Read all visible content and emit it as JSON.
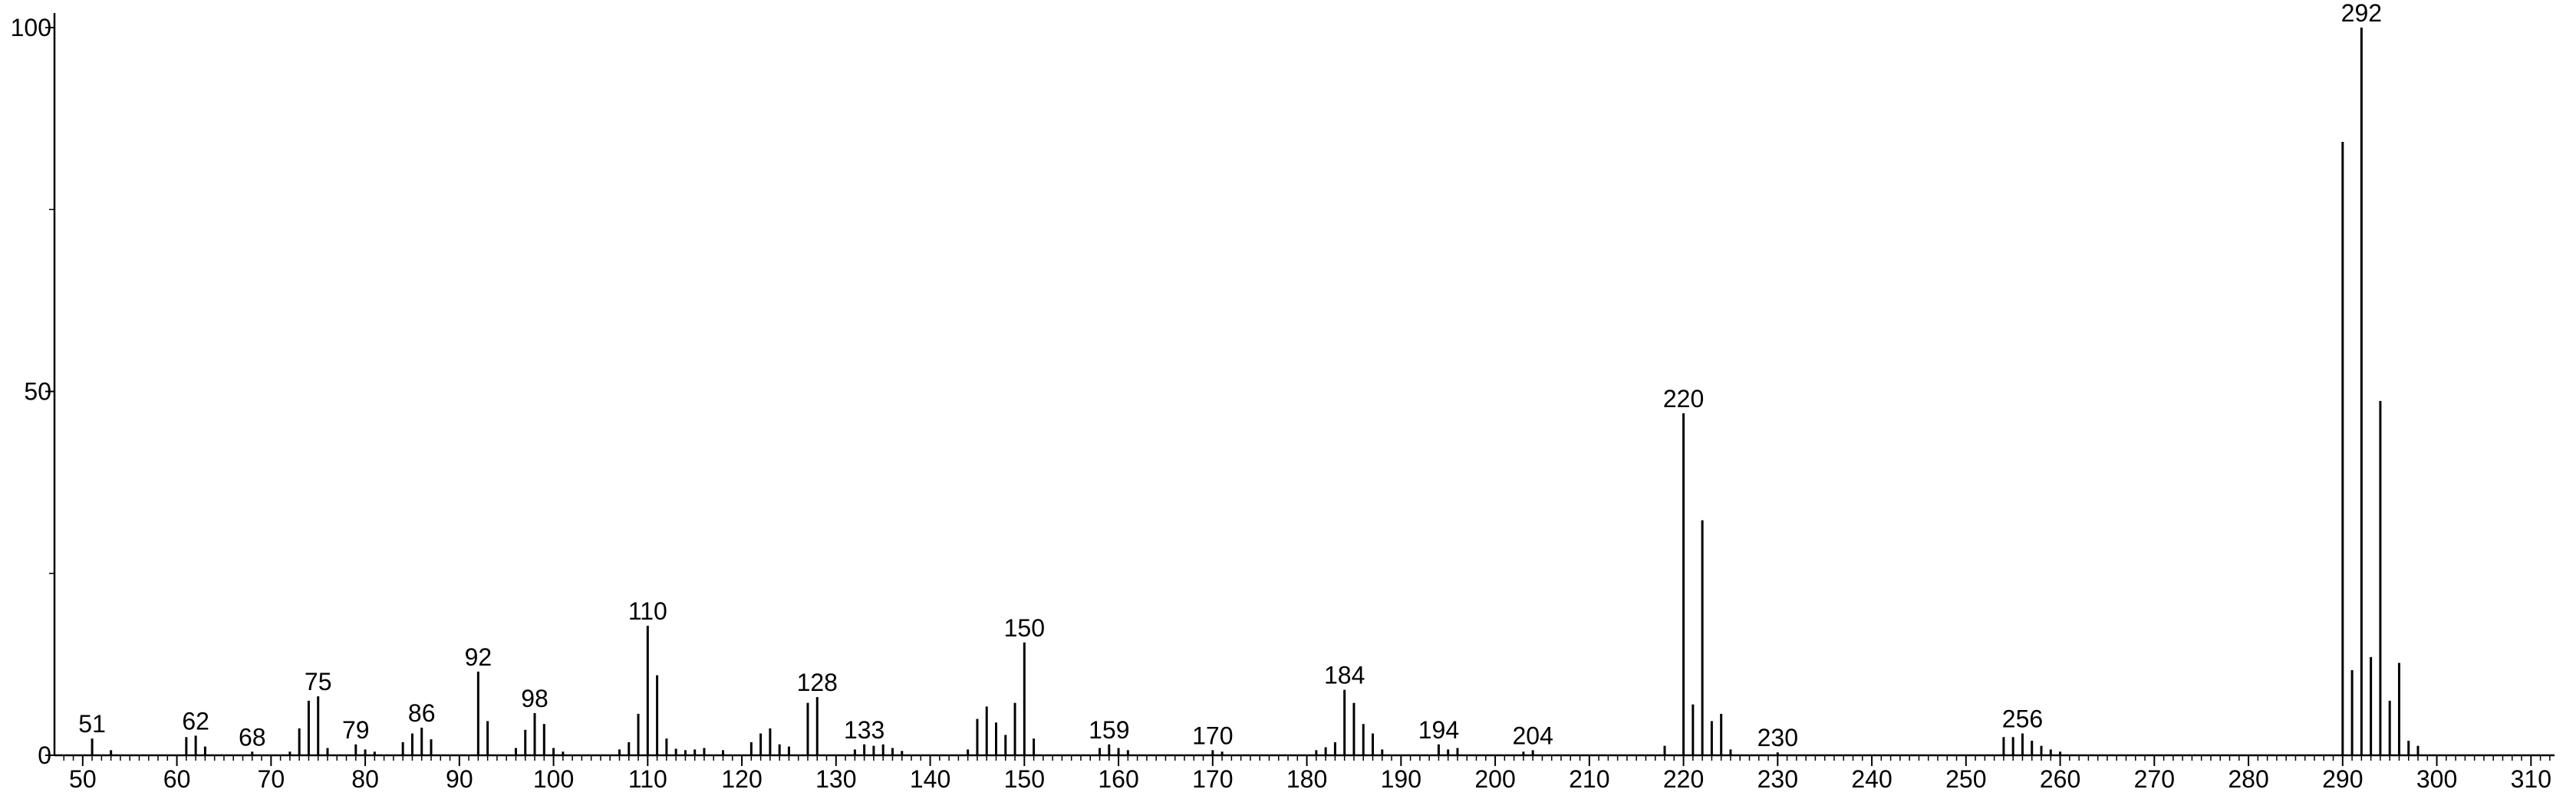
{
  "chart_data": {
    "type": "stick",
    "color": "#000000",
    "x": [
      51,
      53,
      61,
      62,
      63,
      68,
      72,
      73,
      74,
      75,
      76,
      79,
      80,
      81,
      84,
      85,
      86,
      87,
      92,
      93,
      96,
      97,
      98,
      99,
      100,
      101,
      107,
      108,
      109,
      110,
      111,
      112,
      113,
      114,
      115,
      116,
      118,
      121,
      122,
      123,
      124,
      125,
      127,
      128,
      132,
      133,
      134,
      135,
      136,
      137,
      144,
      145,
      146,
      147,
      148,
      149,
      150,
      151,
      158,
      159,
      160,
      161,
      170,
      171,
      181,
      182,
      183,
      184,
      185,
      186,
      187,
      188,
      194,
      195,
      196,
      203,
      204,
      218,
      220,
      221,
      222,
      223,
      224,
      225,
      230,
      254,
      255,
      256,
      257,
      258,
      259,
      260,
      290,
      291,
      292,
      293,
      294,
      295,
      296,
      297,
      298
    ],
    "values": [
      2.3,
      0.7,
      2.5,
      2.7,
      1.2,
      0.5,
      0.5,
      3.7,
      7.5,
      8.1,
      1,
      1.5,
      0.8,
      0.5,
      1.8,
      3,
      3.8,
      2.2,
      11.5,
      4.7,
      1,
      3.5,
      5.8,
      4.3,
      1,
      0.5,
      0.8,
      1.8,
      5.7,
      17.8,
      11,
      2.3,
      0.9,
      0.7,
      0.8,
      1,
      0.7,
      1.8,
      3,
      3.7,
      1.5,
      1.2,
      7.2,
      8,
      0.8,
      1.5,
      1.3,
      1.5,
      1,
      0.6,
      0.8,
      5,
      6.7,
      4.5,
      2.8,
      7.2,
      15.5,
      2.3,
      1,
      1.5,
      1,
      0.7,
      0.7,
      0.5,
      0.7,
      1.1,
      1.8,
      9,
      7.2,
      4.3,
      3,
      0.8,
      1.5,
      0.8,
      1,
      0.5,
      0.7,
      1.3,
      47,
      7,
      32.3,
      4.7,
      5.7,
      0.8,
      0.4,
      2.5,
      2.5,
      3,
      2,
      1.3,
      0.8,
      0.5,
      84.3,
      11.7,
      100,
      13.5,
      48.7,
      7.5,
      12.7,
      2,
      1.3
    ],
    "peak_labels": [
      51,
      62,
      68,
      75,
      79,
      86,
      92,
      98,
      110,
      128,
      133,
      150,
      159,
      170,
      184,
      194,
      204,
      220,
      230,
      256,
      292
    ],
    "xlim": [
      47,
      312.5
    ],
    "ylim": [
      0,
      102
    ],
    "xticks": [
      50,
      60,
      70,
      80,
      90,
      100,
      110,
      120,
      130,
      140,
      150,
      160,
      170,
      180,
      190,
      200,
      210,
      220,
      230,
      240,
      250,
      260,
      270,
      280,
      290,
      300,
      310
    ],
    "xminor_ticks": [
      48,
      49,
      51,
      52,
      53,
      54,
      55,
      56,
      57,
      58,
      59,
      61,
      62,
      63,
      64,
      65,
      66,
      67,
      68,
      69,
      71,
      72,
      73,
      74,
      75,
      76,
      77,
      78,
      79,
      81,
      82,
      83,
      84,
      85,
      86,
      87,
      88,
      89,
      91,
      92,
      93,
      94,
      95,
      96,
      97,
      98,
      99,
      101,
      102,
      103,
      104,
      105,
      106,
      107,
      108,
      109,
      111,
      112,
      113,
      114,
      115,
      116,
      117,
      118,
      119,
      121,
      122,
      123,
      124,
      125,
      126,
      127,
      128,
      129,
      131,
      132,
      133,
      134,
      135,
      136,
      137,
      138,
      139,
      141,
      142,
      143,
      144,
      145,
      146,
      147,
      148,
      149,
      151,
      152,
      153,
      154,
      155,
      156,
      157,
      158,
      159,
      161,
      162,
      163,
      164,
      165,
      166,
      167,
      168,
      169,
      171,
      172,
      173,
      174,
      175,
      176,
      177,
      178,
      179,
      181,
      182,
      183,
      184,
      185,
      186,
      187,
      188,
      189,
      191,
      192,
      193,
      194,
      195,
      196,
      197,
      198,
      199,
      201,
      202,
      203,
      204,
      205,
      206,
      207,
      208,
      209,
      211,
      212,
      213,
      214,
      215,
      216,
      217,
      218,
      219,
      221,
      222,
      223,
      224,
      225,
      226,
      227,
      228,
      229,
      231,
      232,
      233,
      234,
      235,
      236,
      237,
      238,
      239,
      241,
      242,
      243,
      244,
      245,
      246,
      247,
      248,
      249,
      251,
      252,
      253,
      254,
      255,
      256,
      257,
      258,
      259,
      261,
      262,
      263,
      264,
      265,
      266,
      267,
      268,
      269,
      271,
      272,
      273,
      274,
      275,
      276,
      277,
      278,
      279,
      281,
      282,
      283,
      284,
      285,
      286,
      287,
      288,
      289,
      291,
      292,
      293,
      294,
      295,
      296,
      297,
      298,
      299,
      301,
      302,
      303,
      304,
      305,
      306,
      307,
      308,
      309,
      311,
      312
    ],
    "yticks": [
      0,
      50,
      100
    ],
    "yminor_ticks": [
      25,
      75
    ]
  }
}
